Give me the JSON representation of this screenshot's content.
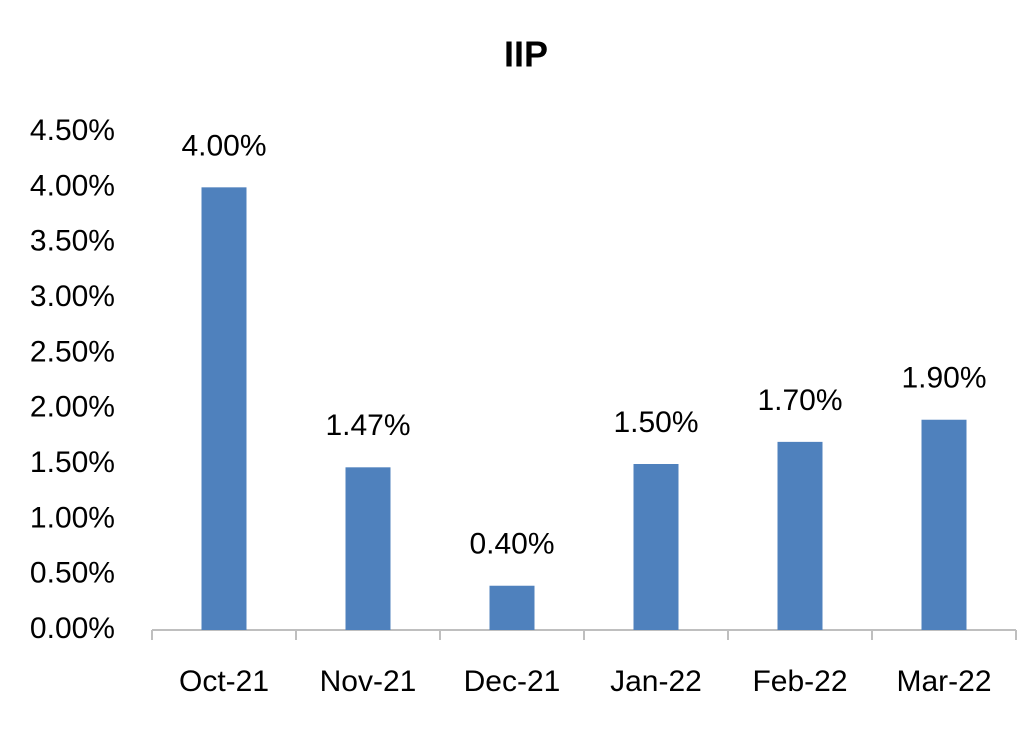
{
  "chart_data": {
    "type": "bar",
    "title": "IIP",
    "categories": [
      "Oct-21",
      "Nov-21",
      "Dec-21",
      "Jan-22",
      "Feb-22",
      "Mar-22"
    ],
    "values": [
      4.0,
      1.47,
      0.4,
      1.5,
      1.7,
      1.9
    ],
    "value_labels": [
      "4.00%",
      "1.47%",
      "0.40%",
      "1.50%",
      "1.70%",
      "1.90%"
    ],
    "color": "#4f81bd",
    "ylim": [
      0,
      4.5
    ],
    "yticks": [
      {
        "value": 0,
        "label": "0.00%"
      },
      {
        "value": 0.5,
        "label": "0.50%"
      },
      {
        "value": 1,
        "label": "1.00%"
      },
      {
        "value": 1.5,
        "label": "1.50%"
      },
      {
        "value": 2,
        "label": "2.00%"
      },
      {
        "value": 2.5,
        "label": "2.50%"
      },
      {
        "value": 3,
        "label": "3.00%"
      },
      {
        "value": 3.5,
        "label": "3.50%"
      },
      {
        "value": 4,
        "label": "4.00%"
      },
      {
        "value": 4.5,
        "label": "4.50%"
      }
    ],
    "grid": false
  }
}
